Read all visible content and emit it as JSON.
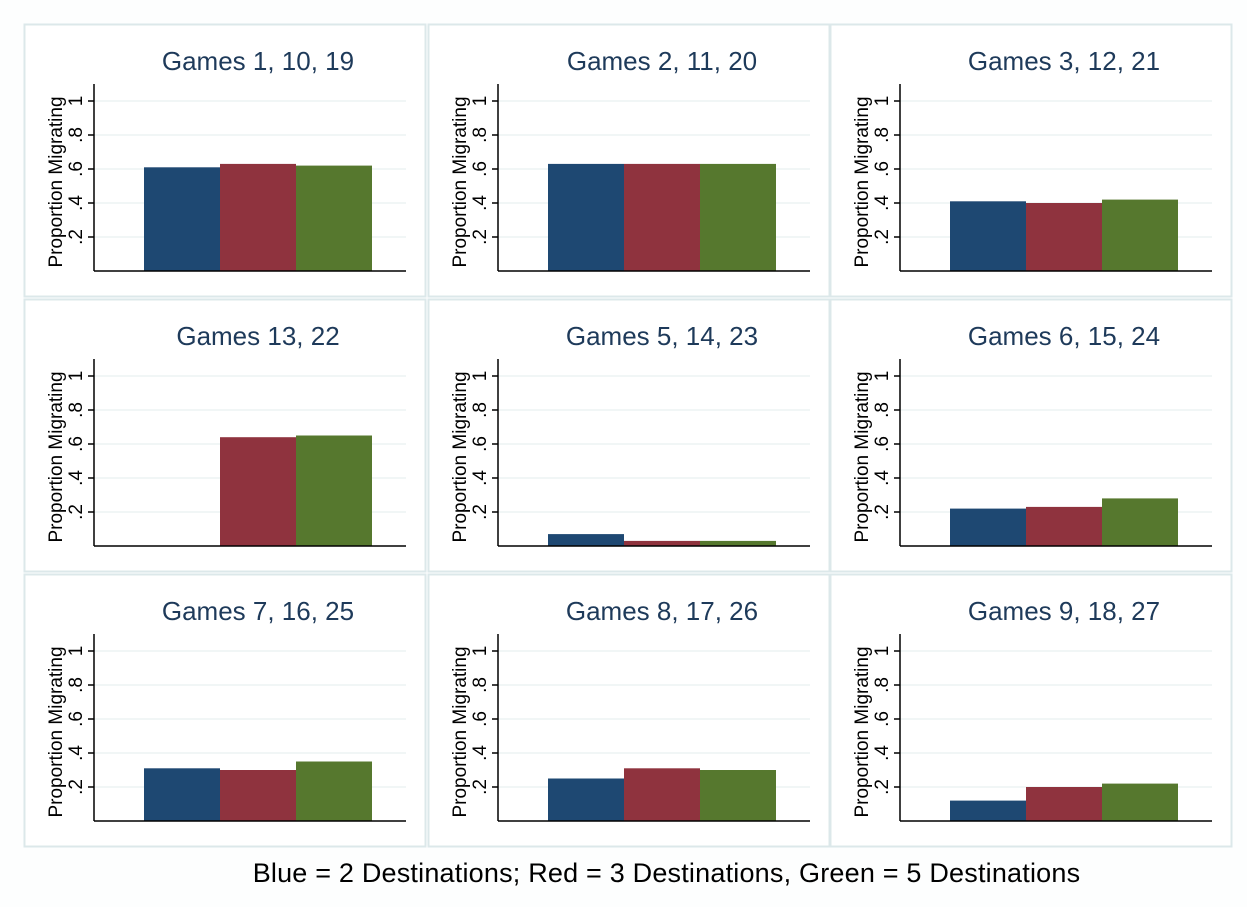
{
  "figure": {
    "caption": "Blue = 2 Destinations; Red =  3 Destinations, Green = 5 Destinations"
  },
  "colors": {
    "blue": "#1e4872",
    "red": "#8f333e",
    "green": "#56782e",
    "panel_border": "#dce8ea",
    "gridline": "#e3eced",
    "title_text": "#1e3a5a"
  },
  "chart_data": [
    {
      "type": "bar",
      "title": "Games 1, 10, 19",
      "ylabel": "Proportion Migrating",
      "ylim": [
        0,
        1.1
      ],
      "yticks": [
        0.2,
        0.4,
        0.6,
        0.8,
        1
      ],
      "ytick_labels": [
        ".2",
        ".4",
        ".6",
        ".8",
        "1"
      ],
      "values": [
        0.61,
        0.63,
        0.62
      ]
    },
    {
      "type": "bar",
      "title": "Games 2, 11, 20",
      "ylabel": "Proportion Migrating",
      "ylim": [
        0,
        1.1
      ],
      "yticks": [
        0.2,
        0.4,
        0.6,
        0.8,
        1
      ],
      "ytick_labels": [
        ".2",
        ".4",
        ".6",
        ".8",
        "1"
      ],
      "values": [
        0.63,
        0.63,
        0.63
      ]
    },
    {
      "type": "bar",
      "title": "Games 3, 12, 21",
      "ylabel": "Proportion Migrating",
      "ylim": [
        0,
        1.1
      ],
      "yticks": [
        0.2,
        0.4,
        0.6,
        0.8,
        1
      ],
      "ytick_labels": [
        ".2",
        ".4",
        ".6",
        ".8",
        "1"
      ],
      "values": [
        0.41,
        0.4,
        0.42
      ]
    },
    {
      "type": "bar",
      "title": "Games 13, 22",
      "ylabel": "Proportion Migrating",
      "ylim": [
        0,
        1.1
      ],
      "yticks": [
        0.2,
        0.4,
        0.6,
        0.8,
        1
      ],
      "ytick_labels": [
        ".2",
        ".4",
        ".6",
        ".8",
        "1"
      ],
      "values": [
        null,
        0.64,
        0.65
      ]
    },
    {
      "type": "bar",
      "title": "Games 5, 14, 23",
      "ylabel": "Proportion Migrating",
      "ylim": [
        0,
        1.1
      ],
      "yticks": [
        0.2,
        0.4,
        0.6,
        0.8,
        1
      ],
      "ytick_labels": [
        ".2",
        ".4",
        ".6",
        ".8",
        "1"
      ],
      "values": [
        0.07,
        0.03,
        0.03
      ]
    },
    {
      "type": "bar",
      "title": "Games 6, 15, 24",
      "ylabel": "Proportion Migrating",
      "ylim": [
        0,
        1.1
      ],
      "yticks": [
        0.2,
        0.4,
        0.6,
        0.8,
        1
      ],
      "ytick_labels": [
        ".2",
        ".4",
        ".6",
        ".8",
        "1"
      ],
      "values": [
        0.22,
        0.23,
        0.28
      ]
    },
    {
      "type": "bar",
      "title": "Games 7, 16, 25",
      "ylabel": "Proportion Migrating",
      "ylim": [
        0,
        1.1
      ],
      "yticks": [
        0.2,
        0.4,
        0.6,
        0.8,
        1
      ],
      "ytick_labels": [
        ".2",
        ".4",
        ".6",
        ".8",
        "1"
      ],
      "values": [
        0.31,
        0.3,
        0.35
      ]
    },
    {
      "type": "bar",
      "title": "Games 8, 17, 26",
      "ylabel": "Proportion Migrating",
      "ylim": [
        0,
        1.1
      ],
      "yticks": [
        0.2,
        0.4,
        0.6,
        0.8,
        1
      ],
      "ytick_labels": [
        ".2",
        ".4",
        ".6",
        ".8",
        "1"
      ],
      "values": [
        0.25,
        0.31,
        0.3
      ]
    },
    {
      "type": "bar",
      "title": "Games 9, 18, 27",
      "ylabel": "Proportion Migrating",
      "ylim": [
        0,
        1.1
      ],
      "yticks": [
        0.2,
        0.4,
        0.6,
        0.8,
        1
      ],
      "ytick_labels": [
        ".2",
        ".4",
        ".6",
        ".8",
        "1"
      ],
      "values": [
        0.12,
        0.2,
        0.22
      ]
    }
  ]
}
